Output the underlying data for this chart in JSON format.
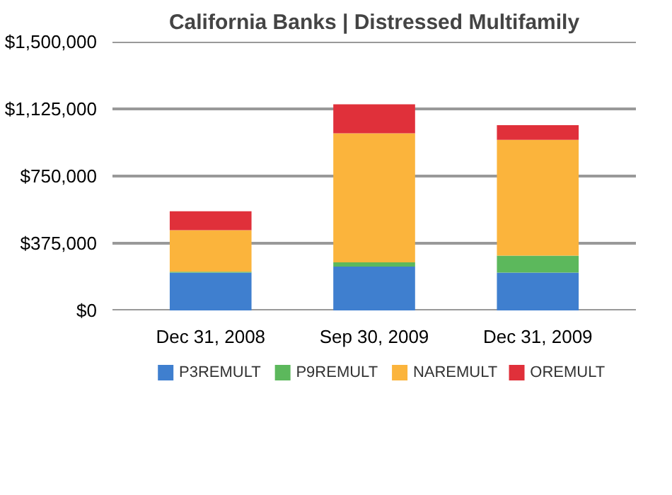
{
  "chart_data": {
    "type": "bar",
    "title": "California Banks | Distressed Multifamily",
    "categories": [
      "Dec 31, 2008",
      "Sep 30, 2009",
      "Dec 31, 2009"
    ],
    "stacked": true,
    "series": [
      {
        "name": "P3REMULT",
        "color": "#3f7fcf",
        "values": [
          211000,
          245000,
          211000
        ]
      },
      {
        "name": "P9REMULT",
        "color": "#5cb85c",
        "values": [
          5000,
          23000,
          95000
        ]
      },
      {
        "name": "NAREMULT",
        "color": "#fbb43c",
        "values": [
          232000,
          721000,
          646000
        ]
      },
      {
        "name": "OREMULT",
        "color": "#e0303a",
        "values": [
          106000,
          162000,
          82000
        ]
      }
    ],
    "ylim": [
      0,
      1500000
    ],
    "yticks": [
      {
        "value": 0,
        "label": "$0"
      },
      {
        "value": 375000,
        "label": "$375,000"
      },
      {
        "value": 750000,
        "label": "$750,000"
      },
      {
        "value": 1125000,
        "label": "$1,125,000"
      },
      {
        "value": 1500000,
        "label": "$1,500,000"
      }
    ],
    "grid": "y",
    "legend": "bottom"
  }
}
